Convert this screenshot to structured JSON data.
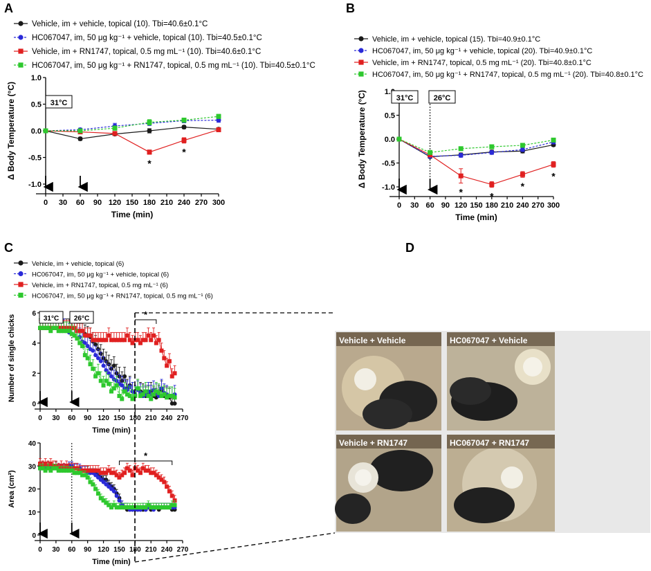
{
  "colors": {
    "black": "#1a1a1a",
    "blue": "#2a2ad8",
    "red": "#e02020",
    "green": "#2ec82e"
  },
  "panelA": {
    "letter": "A",
    "legend": [
      "Vehicle, im + vehicle, topical (10). Tbi=40.6±0.1°C",
      "HC067047, im, 50 μg kg⁻¹ + vehicle, topical (10). Tbi=40.5±0.1°C",
      "Vehicle, im + RN1747, topical, 0.5 mg mL⁻¹ (10). Tbi=40.6±0.1°C",
      "HC067047, im, 50 μg kg⁻¹ + RN1747, topical, 0.5 mg mL⁻¹ (10). Tbi=40.5±0.1°C"
    ],
    "temp_box": "31°C",
    "star": "*"
  },
  "panelB": {
    "letter": "B",
    "legend": [
      "Vehicle, im + vehicle, topical (15). Tbi=40.9±0.1°C",
      "HC067047, im, 50 μg kg⁻¹ + vehicle, topical (20). Tbi=40.9±0.1°C",
      "Vehicle, im + RN1747, topical, 0.5 mg mL⁻¹ (20). Tbi=40.8±0.1°C",
      "HC067047, im, 50 μg kg⁻¹ + RN1747, topical, 0.5 mg mL⁻¹ (20). Tbi=40.8±0.1°C"
    ],
    "temp_box1": "31°C",
    "temp_box2": "26°C",
    "star": "*"
  },
  "panelC": {
    "letter": "C",
    "legend": [
      "Vehicle, im + vehicle, topical (6)",
      "HC067047, im, 50 μg kg⁻¹ + vehicle, topical (6)",
      "Vehicle, im + RN1747, topical, 0.5 mg mL⁻¹ (6)",
      "HC067047, im, 50 μg kg⁻¹ + RN1747, topical, 0.5 mg mL⁻¹ (6)"
    ],
    "temp_box1": "31°C",
    "temp_box2": "26°C",
    "star": "*"
  },
  "panelD": {
    "letter": "D",
    "photos": [
      "Vehicle + Vehicle",
      "HC067047 + Vehicle",
      "Vehicle + RN1747",
      "HC067047 + RN1747"
    ]
  },
  "chart_data": [
    {
      "id": "A",
      "type": "line",
      "ylabel": "Δ Body Temperature (°C)",
      "xlabel": "Time (min)",
      "ylim": [
        -1.0,
        1.0
      ],
      "yticks": [
        -1.0,
        -0.5,
        0.0,
        0.5,
        1.0
      ],
      "ytick_labels": [
        "-1.0",
        "-0.5",
        "0.0",
        "0.5",
        "1.0"
      ],
      "xlim": [
        0,
        300
      ],
      "xticks": [
        0,
        30,
        60,
        90,
        120,
        150,
        180,
        210,
        240,
        270,
        300
      ],
      "xtick_labels": [
        "0",
        "30",
        "60",
        "90",
        "120",
        "150",
        "180",
        "210",
        "240",
        "270",
        "300"
      ],
      "x": [
        0,
        60,
        120,
        180,
        240,
        300
      ],
      "series": [
        {
          "name": "Vehicle, im + vehicle, topical (10)",
          "values": [
            0.0,
            -0.15,
            -0.06,
            0.0,
            0.07,
            0.03
          ],
          "err": [
            0.01,
            0.03,
            0.03,
            0.04,
            0.03,
            0.03
          ]
        },
        {
          "name": "HC067047, im, 50 μg kg⁻¹ + vehicle, topical (10)",
          "values": [
            0.0,
            0.02,
            0.09,
            0.14,
            0.19,
            0.2
          ],
          "err": [
            0.01,
            0.03,
            0.05,
            0.04,
            0.04,
            0.04
          ]
        },
        {
          "name": "Vehicle, im + RN1747, topical, 0.5 mg mL⁻¹ (10)",
          "values": [
            0.0,
            -0.02,
            -0.05,
            -0.4,
            -0.18,
            0.02
          ],
          "err": [
            0.01,
            0.03,
            0.03,
            0.04,
            0.05,
            0.03
          ]
        },
        {
          "name": "HC067047, im, 50 μg kg⁻¹ + RN1747, topical, 0.5 mg mL⁻¹ (10)",
          "values": [
            0.0,
            0.0,
            0.05,
            0.16,
            0.2,
            0.27
          ],
          "err": [
            0.01,
            0.03,
            0.04,
            0.05,
            0.04,
            0.04
          ]
        }
      ],
      "significant_x": [
        180,
        240
      ]
    },
    {
      "id": "B",
      "type": "line",
      "ylabel": "Δ Body Temperature (°C)",
      "xlabel": "Time (min)",
      "ylim": [
        -1.0,
        1.0
      ],
      "yticks": [
        -1.0,
        -0.5,
        0.0,
        0.5,
        1.0
      ],
      "ytick_labels": [
        "-1.0",
        "-0.5",
        "0.0",
        "0.5",
        "1.0"
      ],
      "xlim": [
        0,
        300
      ],
      "xticks": [
        0,
        30,
        60,
        90,
        120,
        150,
        180,
        210,
        240,
        270,
        300
      ],
      "xtick_labels": [
        "0",
        "30",
        "60",
        "90",
        "120",
        "150",
        "180",
        "210",
        "240",
        "270",
        "300"
      ],
      "x": [
        0,
        60,
        120,
        180,
        240,
        300
      ],
      "series": [
        {
          "name": "Vehicle, im + vehicle, topical (15)",
          "values": [
            0.0,
            -0.37,
            -0.33,
            -0.27,
            -0.25,
            -0.12
          ],
          "err": [
            0.01,
            0.03,
            0.04,
            0.04,
            0.04,
            0.03
          ]
        },
        {
          "name": "HC067047, im, 50 μg kg⁻¹ + vehicle, topical (20)",
          "values": [
            0.0,
            -0.36,
            -0.34,
            -0.28,
            -0.22,
            -0.06
          ],
          "err": [
            0.01,
            0.03,
            0.04,
            0.04,
            0.04,
            0.04
          ]
        },
        {
          "name": "Vehicle, im + RN1747, topical, 0.5 mg mL⁻¹ (20)",
          "values": [
            0.0,
            -0.33,
            -0.77,
            -0.95,
            -0.74,
            -0.53
          ],
          "err": [
            0.01,
            0.04,
            0.15,
            0.06,
            0.06,
            0.06
          ]
        },
        {
          "name": "HC067047, im, 50 μg kg⁻¹ + RN1747, topical, 0.5 mg mL⁻¹ (20)",
          "values": [
            0.0,
            -0.28,
            -0.2,
            -0.16,
            -0.13,
            -0.02
          ],
          "err": [
            0.01,
            0.04,
            0.04,
            0.04,
            0.04,
            0.04
          ]
        }
      ],
      "significant_x": [
        120,
        180,
        240,
        300
      ]
    },
    {
      "id": "C1",
      "type": "line",
      "ylabel": "Number of single chicks",
      "xlabel": "Time (min)",
      "ylim": [
        0,
        6
      ],
      "yticks": [
        0,
        2,
        4,
        6
      ],
      "ytick_labels": [
        "0",
        "2",
        "4",
        "6"
      ],
      "xlim": [
        0,
        270
      ],
      "xticks": [
        0,
        30,
        60,
        90,
        120,
        150,
        180,
        210,
        240,
        270
      ],
      "xtick_labels": [
        "0",
        "30",
        "60",
        "90",
        "120",
        "150",
        "180",
        "210",
        "240",
        "270"
      ],
      "x": [
        0,
        5,
        10,
        15,
        20,
        25,
        30,
        35,
        40,
        45,
        50,
        55,
        60,
        65,
        70,
        75,
        80,
        85,
        90,
        95,
        100,
        105,
        110,
        115,
        120,
        125,
        130,
        135,
        140,
        145,
        150,
        155,
        160,
        165,
        170,
        175,
        180,
        185,
        190,
        195,
        200,
        205,
        210,
        215,
        220,
        225,
        230,
        235,
        240,
        245,
        250,
        255
      ],
      "series": [
        {
          "name": "Vehicle, im + vehicle, topical (6)",
          "values": [
            5,
            5,
            5,
            5,
            5,
            5,
            5,
            5,
            5,
            5,
            5,
            5,
            5,
            5,
            4.8,
            4.8,
            4.8,
            4.6,
            4.5,
            4.4,
            4.1,
            3.9,
            3.6,
            3.3,
            3.0,
            2.8,
            2.6,
            2.3,
            2.5,
            2.0,
            1.8,
            1.5,
            1.8,
            1.0,
            1.2,
            0.8,
            0.5,
            1.0,
            0.8,
            0.7,
            0.5,
            0.6,
            0.8,
            0.5,
            0.4,
            0.6,
            0.9,
            0.5,
            0.5,
            0.4,
            0.0,
            0.0
          ]
        },
        {
          "name": "HC067047, im, 50 μg kg⁻¹ + vehicle, topical (6)",
          "values": [
            5,
            5,
            5,
            5,
            5,
            5,
            5,
            5,
            5,
            5,
            4.8,
            4.7,
            4.6,
            4.5,
            4.3,
            4.4,
            4.1,
            4.0,
            3.8,
            3.6,
            3.5,
            3.2,
            3.0,
            2.8,
            2.5,
            2.2,
            2.0,
            1.8,
            1.6,
            1.5,
            1.3,
            1.2,
            1.0,
            0.9,
            1.1,
            0.8,
            0.6,
            0.9,
            0.7,
            0.5,
            0.6,
            0.8,
            0.6,
            0.9,
            0.7,
            0.5,
            1.0,
            0.7,
            0.6,
            0.5,
            0.5,
            0.6
          ]
        },
        {
          "name": "Vehicle, im + RN1747, topical, 0.5 mg mL⁻¹ (6)",
          "values": [
            5,
            5,
            5,
            5,
            5,
            5,
            5,
            5,
            5,
            5,
            5,
            5,
            5,
            5,
            4.8,
            4.8,
            4.8,
            4.5,
            4.5,
            4.5,
            4.2,
            4.2,
            4.2,
            4.2,
            4.2,
            4.2,
            4.5,
            4.2,
            4.2,
            4.2,
            4.2,
            4.2,
            4.2,
            4.5,
            4.2,
            4.0,
            4.2,
            4.2,
            4.0,
            4.2,
            4.2,
            4.5,
            4.2,
            4.5,
            4.0,
            4.2,
            3.5,
            3.0,
            2.5,
            2.8,
            1.8,
            2.0
          ]
        },
        {
          "name": "HC067047, im, 50 μg kg⁻¹ + RN1747, topical, 0.5 mg mL⁻¹ (6)",
          "values": [
            5,
            5,
            5,
            5,
            4.8,
            5,
            5,
            4.8,
            4.8,
            4.8,
            4.8,
            4.8,
            4.6,
            4.5,
            4.3,
            4.0,
            3.8,
            3.2,
            3.0,
            2.6,
            2.3,
            1.8,
            2.0,
            1.5,
            1.2,
            1.5,
            1.3,
            0.8,
            1.0,
            1.2,
            0.5,
            0.3,
            0.8,
            0.6,
            0.5,
            0.3,
            0.5,
            1.0,
            0.5,
            0.6,
            0.8,
            0.5,
            0.3,
            0.6,
            0.8,
            0.7,
            0.5,
            0.6,
            0.4,
            0.5,
            0.5,
            0.4
          ]
        }
      ],
      "significant_range": [
        180,
        220
      ]
    },
    {
      "id": "C2",
      "type": "line",
      "ylabel": "Area (cm²)",
      "xlabel": "Time (min)",
      "ylim": [
        0,
        40
      ],
      "yticks": [
        0,
        10,
        20,
        30,
        40
      ],
      "ytick_labels": [
        "0",
        "10",
        "20",
        "30",
        "40"
      ],
      "xlim": [
        0,
        270
      ],
      "xticks": [
        0,
        30,
        60,
        90,
        120,
        150,
        180,
        210,
        240,
        270
      ],
      "xtick_labels": [
        "0",
        "30",
        "60",
        "90",
        "120",
        "150",
        "180",
        "210",
        "240",
        "270"
      ],
      "x": [
        0,
        5,
        10,
        15,
        20,
        25,
        30,
        35,
        40,
        45,
        50,
        55,
        60,
        65,
        70,
        75,
        80,
        85,
        90,
        95,
        100,
        105,
        110,
        115,
        120,
        125,
        130,
        135,
        140,
        145,
        150,
        155,
        160,
        165,
        170,
        175,
        180,
        185,
        190,
        195,
        200,
        205,
        210,
        215,
        220,
        225,
        230,
        235,
        240,
        245,
        250,
        255
      ],
      "series": [
        {
          "name": "Vehicle, im + vehicle, topical (6)",
          "values": [
            30,
            30,
            29,
            30,
            29,
            29,
            30,
            29,
            29,
            29,
            29,
            29,
            30,
            29,
            29,
            28,
            28,
            28,
            28,
            27,
            27,
            27,
            26,
            25,
            24,
            24,
            22,
            21,
            20,
            18,
            16,
            13,
            12,
            11,
            11,
            11,
            11,
            11,
            11,
            11,
            11,
            12,
            11,
            12,
            12,
            11,
            12,
            12,
            12,
            12,
            11,
            11
          ]
        },
        {
          "name": "HC067047, im, 50 μg kg⁻¹ + vehicle, topical (6)",
          "values": [
            29,
            29,
            29,
            29,
            29,
            29,
            29,
            29,
            29,
            29,
            29,
            30,
            30,
            29,
            29,
            29,
            28,
            28,
            27,
            27,
            27,
            26,
            25,
            24,
            23,
            22,
            21,
            20,
            19,
            17,
            15,
            13,
            12,
            12,
            11,
            11,
            11,
            11,
            11,
            12,
            11,
            12,
            12,
            11,
            12,
            12,
            12,
            12,
            12,
            12,
            12,
            12
          ]
        },
        {
          "name": "Vehicle, im + RN1747, topical, 0.5 mg mL⁻¹ (6)",
          "values": [
            31,
            30,
            31,
            30,
            31,
            30,
            30,
            29,
            30,
            29,
            30,
            29,
            29,
            29,
            29,
            28,
            28,
            28,
            28,
            28,
            28,
            28,
            28,
            27,
            27,
            27,
            28,
            27,
            27,
            26,
            25,
            26,
            27,
            29,
            28,
            26,
            29,
            28,
            27,
            29,
            28,
            28,
            27,
            27,
            26,
            25,
            24,
            23,
            21,
            19,
            17,
            15
          ]
        },
        {
          "name": "HC067047, im, 50 μg kg⁻¹ + RN1747, topical, 0.5 mg mL⁻¹ (6)",
          "values": [
            29,
            29,
            28,
            29,
            28,
            29,
            29,
            28,
            28,
            28,
            28,
            28,
            28,
            27,
            27,
            27,
            26,
            26,
            25,
            23,
            22,
            20,
            18,
            16,
            15,
            14,
            13,
            12,
            13,
            12,
            12,
            12,
            12,
            12,
            12,
            12,
            12,
            12,
            12,
            12,
            12,
            13,
            12,
            12,
            12,
            12,
            12,
            12,
            12,
            12,
            13,
            13
          ]
        }
      ],
      "significant_range": [
        150,
        250
      ]
    }
  ]
}
